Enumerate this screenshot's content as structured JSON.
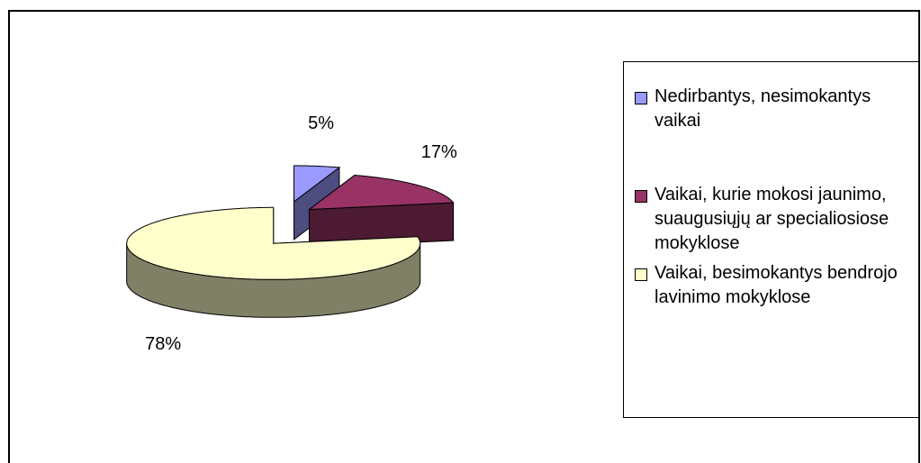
{
  "chart_data": {
    "type": "pie",
    "categories": [
      "Nedirbantys, nesimokantys vaikai",
      "Vaikai, kurie mokosi jaunimo, suaugusiųjų ar specialiosiose mokyklose",
      "Vaikai, besimokantys bendrojo lavinimo mokyklose"
    ],
    "values": [
      5,
      17,
      78
    ],
    "value_labels": [
      "5%",
      "17%",
      "78%"
    ],
    "colors": [
      "#9999ff",
      "#993366",
      "#ffffcc"
    ],
    "legend": "right"
  }
}
